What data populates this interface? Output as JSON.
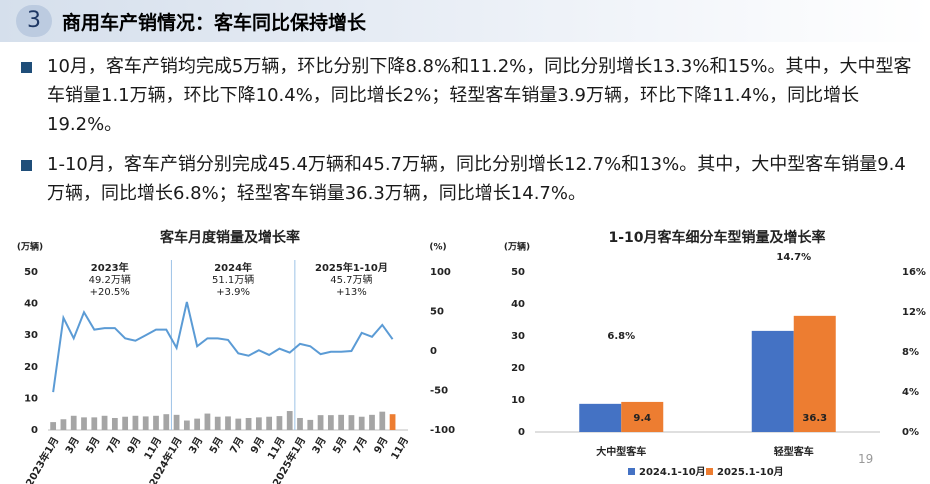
{
  "header": {
    "number": "3",
    "title": "商用车产销情况：客车同比保持增长"
  },
  "bullets": [
    "10月，客车产销均完成5万辆，环比分别下降8.8%和11.2%，同比分别增长13.3%和15%。其中，大中型客车销量1.1万辆，环比下降10.4%，同比增长2%；轻型客车销量3.9万辆，环比下降11.4%，同比增长19.2%。",
    "1-10月，客车产销分别完成45.4万辆和45.7万辆，同比分别增长12.7%和13%。其中，大中型客车销量9.4万辆，同比增长6.8%；轻型客车销量36.3万辆，同比增长14.7%。"
  ],
  "page_number": "19",
  "chart_data": [
    {
      "type": "bar-line",
      "title": "客车月度销量及增长率",
      "ylabel": "(万辆)",
      "y2label": "(%)",
      "categories": [
        "2023年1月",
        null,
        "3月",
        null,
        "5月",
        null,
        "7月",
        null,
        "9月",
        null,
        "11月",
        null,
        "2024年1月",
        null,
        "3月",
        null,
        "5月",
        null,
        "7月",
        null,
        "9月",
        null,
        "11月",
        null,
        "2025年1月",
        null,
        "3月",
        null,
        "5月",
        null,
        "7月",
        null,
        "9月",
        null,
        "11月"
      ],
      "series": [
        {
          "type": "bar",
          "color": "#a5a5a5",
          "colors": [
            "#a5a5a5",
            "#a5a5a5",
            "#a5a5a5",
            "#a5a5a5",
            "#a5a5a5",
            "#a5a5a5",
            "#a5a5a5",
            "#a5a5a5",
            "#a5a5a5",
            "#a5a5a5",
            "#a5a5a5",
            "#a5a5a5",
            "#a5a5a5",
            "#a5a5a5",
            "#a5a5a5",
            "#a5a5a5",
            "#a5a5a5",
            "#a5a5a5",
            "#a5a5a5",
            "#a5a5a5",
            "#a5a5a5",
            "#a5a5a5",
            "#a5a5a5",
            "#a5a5a5",
            "#a5a5a5",
            "#a5a5a5",
            "#a5a5a5",
            "#a5a5a5",
            "#a5a5a5",
            "#a5a5a5",
            "#a5a5a5",
            "#a5a5a5",
            "#a5a5a5",
            "#ed7d31",
            null
          ],
          "values": [
            2.5,
            3.4,
            4.5,
            4.0,
            4.0,
            4.5,
            3.8,
            4.2,
            4.5,
            4.3,
            4.5,
            5.0,
            4.8,
            3.0,
            3.6,
            5.2,
            4.2,
            4.3,
            3.6,
            3.8,
            4.0,
            4.2,
            4.4,
            6.0,
            3.8,
            3.2,
            4.7,
            4.7,
            4.8,
            4.7,
            4.2,
            4.8,
            5.8,
            5.0,
            null
          ]
        },
        {
          "type": "line",
          "axis": "y2",
          "color": "#5b9bd5",
          "values": [
            -52,
            42,
            16,
            49,
            27,
            29,
            29,
            16,
            13,
            20,
            27,
            27,
            4,
            62,
            6,
            16,
            16,
            14,
            -3,
            -6,
            1,
            -5,
            3,
            -2,
            9,
            6,
            -4,
            -1,
            -1,
            0,
            23,
            18,
            33,
            15,
            null
          ]
        }
      ],
      "annotations": [
        [
          "2023年",
          "49.2万辆",
          "+20.5%"
        ],
        [
          "2024年",
          "51.1万辆",
          "+3.9%"
        ],
        [
          "2025年1-10月",
          "45.7万辆",
          "+13%"
        ]
      ],
      "ylim": [
        0,
        50
      ],
      "yticks": [
        0,
        10,
        20,
        30,
        40,
        50
      ],
      "y2lim": [
        -100,
        100
      ],
      "y2ticks": [
        -100,
        -50,
        0,
        50,
        100
      ]
    },
    {
      "type": "grouped-bar",
      "title": "1-10月客车细分车型销量及增长率",
      "ylabel": "(万辆)",
      "categories": [
        "大中型客车",
        "轻型客车"
      ],
      "series": [
        {
          "name": "2024.1-10月",
          "color": "#4472c4",
          "values": [
            8.8,
            31.6
          ]
        },
        {
          "name": "2025.1-10月",
          "color": "#ed7d31",
          "values": [
            9.4,
            36.3
          ],
          "labels": true
        }
      ],
      "growth": {
        "axis": "y2",
        "values": [
          6.8,
          14.7
        ],
        "value_labels": [
          "6.8%",
          "14.7%"
        ]
      },
      "ylim": [
        0,
        50
      ],
      "yticks": [
        0,
        10,
        20,
        30,
        40,
        50
      ],
      "y2lim": [
        0,
        16
      ],
      "y2ticks": [
        {
          "value": 0,
          "label": "0%"
        },
        {
          "value": 4,
          "label": "4%"
        },
        {
          "value": 8,
          "label": "8%"
        },
        {
          "value": 12,
          "label": "12%"
        },
        {
          "value": 16,
          "label": "16%"
        }
      ],
      "legend": "bottom"
    }
  ]
}
